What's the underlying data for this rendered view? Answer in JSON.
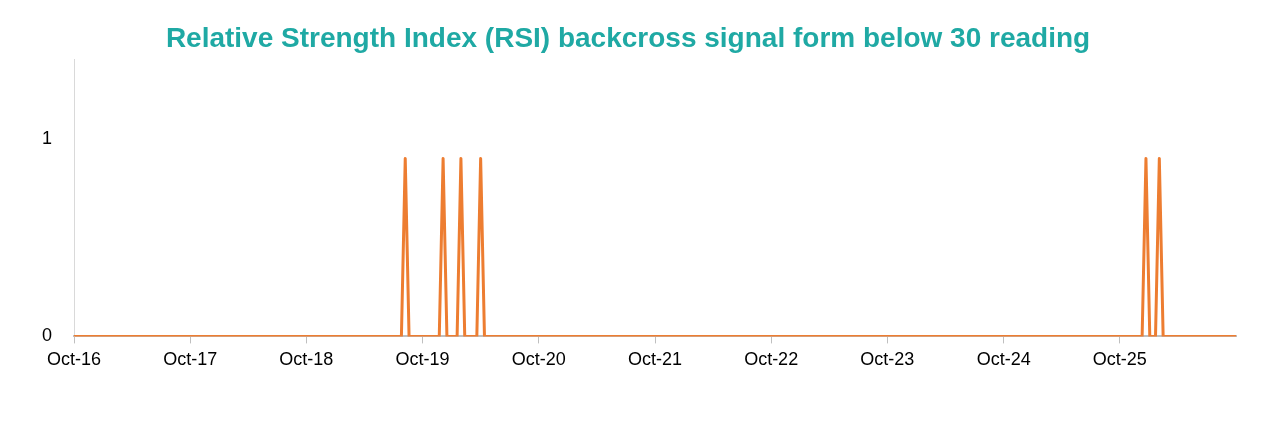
{
  "chart_data": {
    "type": "line",
    "title": "Relative Strength Index (RSI) backcross signal form below 30 reading",
    "x": [
      "2016-10-01",
      "2019-07-27",
      "2019-08-08",
      "2019-08-20",
      "2019-11-23",
      "2019-12-05",
      "2019-12-17",
      "2020-01-18",
      "2020-01-30",
      "2020-02-11",
      "2020-03-20",
      "2020-04-01",
      "2020-04-13",
      "2025-12-10",
      "2025-12-22",
      "2026-01-03",
      "2026-01-21",
      "2026-02-02",
      "2026-02-14",
      "2026-10-01"
    ],
    "series": [
      {
        "color": "#ed7d31",
        "values": [
          0,
          0,
          0.9,
          0,
          0,
          0.9,
          0,
          0,
          0.9,
          0,
          0,
          0.9,
          0,
          0,
          0.9,
          0,
          0,
          0.9,
          0,
          0
        ]
      }
    ],
    "xlim": [
      "2016-10-01",
      "2026-10-01"
    ],
    "xticks": [
      {
        "value": "2016-10-01",
        "label": "Oct-16"
      },
      {
        "value": "2017-10-01",
        "label": "Oct-17"
      },
      {
        "value": "2018-10-01",
        "label": "Oct-18"
      },
      {
        "value": "2019-10-01",
        "label": "Oct-19"
      },
      {
        "value": "2020-10-01",
        "label": "Oct-20"
      },
      {
        "value": "2021-10-01",
        "label": "Oct-21"
      },
      {
        "value": "2022-10-01",
        "label": "Oct-22"
      },
      {
        "value": "2023-10-01",
        "label": "Oct-23"
      },
      {
        "value": "2024-10-01",
        "label": "Oct-24"
      },
      {
        "value": "2025-10-01",
        "label": "Oct-25"
      }
    ],
    "ylim": [
      0,
      1.4
    ],
    "yticks": [
      0,
      1
    ],
    "legend": false,
    "marker": "none",
    "line_style": "solid"
  }
}
